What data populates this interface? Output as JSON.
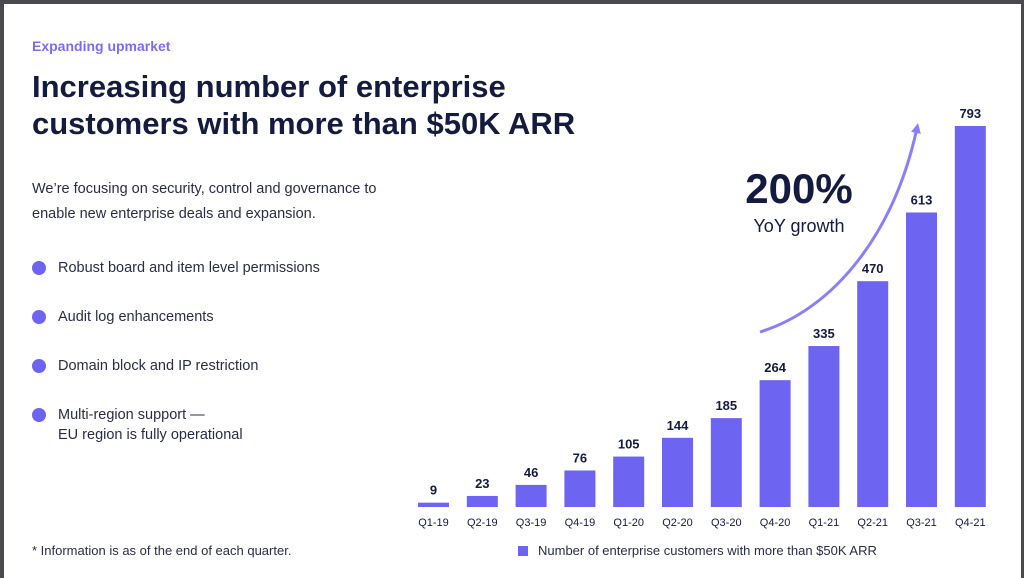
{
  "eyebrow": "Expanding upmarket",
  "title": {
    "line1": "Increasing number of enterprise",
    "line2": "customers with more than $50K ARR"
  },
  "description": {
    "line1": "We’re focusing on security, control and governance to",
    "line2": "enable new enterprise deals and expansion."
  },
  "bullets": [
    {
      "line1": "Robust board and item level permissions"
    },
    {
      "line1": "Audit log enhancements"
    },
    {
      "line1": "Domain block and IP restriction"
    },
    {
      "line1": "Multi-region support —",
      "line2": "EU region is fully operational"
    }
  ],
  "footnote": "* Information is as of the end of each quarter.",
  "growth": {
    "value": "200%",
    "label": "YoY growth"
  },
  "colors": {
    "accent": "#7b6cf6",
    "bar": "#6e64f2",
    "arrow": "#8a80f5",
    "title": "#151a3f"
  },
  "chart_data": {
    "type": "bar",
    "categories": [
      "Q1-19",
      "Q2-19",
      "Q3-19",
      "Q4-19",
      "Q1-20",
      "Q2-20",
      "Q3-20",
      "Q4-20",
      "Q1-21",
      "Q2-21",
      "Q3-21",
      "Q4-21"
    ],
    "series": [
      {
        "name": "Number of enterprise customers with more than $50K ARR",
        "values": [
          9,
          23,
          46,
          76,
          105,
          144,
          185,
          264,
          335,
          470,
          613,
          793
        ]
      }
    ],
    "data_labels": true,
    "legend": "bottom",
    "grid": false,
    "ylim": [
      0,
      793
    ]
  }
}
